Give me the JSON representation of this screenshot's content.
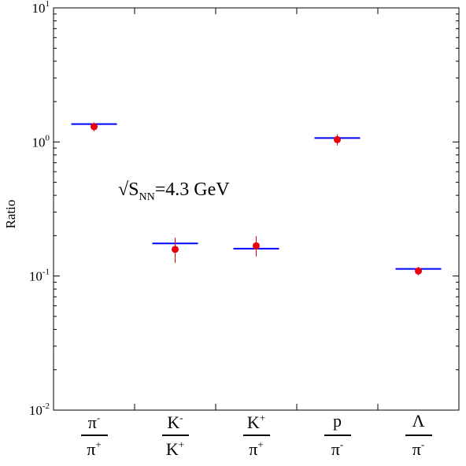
{
  "chart_data": {
    "type": "scatter",
    "ylabel": "Ratio",
    "yscale": "log",
    "ylim": [
      0.01,
      10
    ],
    "yticks": [
      {
        "value": 10,
        "base": "10",
        "exp": "1"
      },
      {
        "value": 1,
        "base": "10",
        "exp": "0"
      },
      {
        "value": 0.1,
        "base": "10",
        "exp": "-1"
      },
      {
        "value": 0.01,
        "base": "10",
        "exp": "-2"
      }
    ],
    "categories": [
      {
        "num": "π",
        "num_sup": "-",
        "den": "π",
        "den_sup": "+"
      },
      {
        "num": "K",
        "num_sup": "-",
        "den": "K",
        "den_sup": "+"
      },
      {
        "num": "K",
        "num_sup": "+",
        "den": "π",
        "den_sup": "+"
      },
      {
        "num": "p",
        "num_sup": "",
        "den": "π",
        "den_sup": "-"
      },
      {
        "num": "Λ",
        "num_sup": "",
        "den": "π",
        "den_sup": "-"
      }
    ],
    "data_points": [
      1.3,
      0.158,
      0.168,
      1.04,
      0.109
    ],
    "errors_low": [
      0.1,
      0.033,
      0.028,
      0.1,
      0.008
    ],
    "errors_high": [
      0.1,
      0.035,
      0.03,
      0.1,
      0.008
    ],
    "model_values": [
      1.36,
      0.175,
      0.16,
      1.07,
      0.113
    ],
    "annotation": {
      "prefix": "√S",
      "sub": "NN",
      "suffix": "=4.3 GeV"
    },
    "colors": {
      "data": "#e8000b",
      "model": "#0000ff",
      "axis": "#000000"
    }
  }
}
